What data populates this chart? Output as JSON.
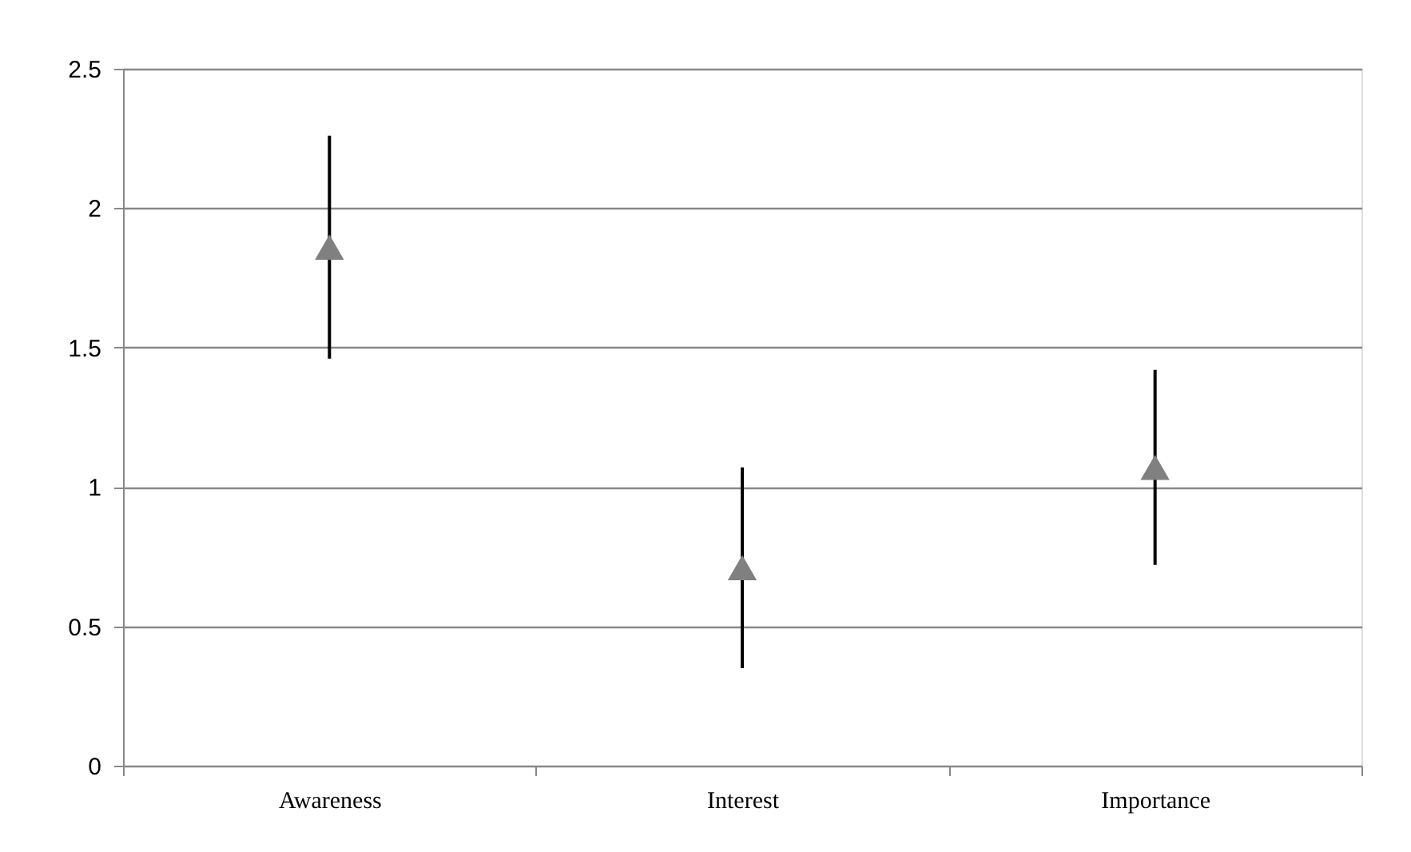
{
  "chart_data": {
    "type": "scatter",
    "categories": [
      "Awareness",
      "Interest",
      "Importance"
    ],
    "series": [
      {
        "color": "#808080",
        "values": [
          1.86,
          0.71,
          1.07
        ],
        "errors": [
          0.4,
          0.36,
          0.35
        ]
      }
    ],
    "marker": "triangle",
    "ylim": [
      0,
      2.5
    ],
    "yticks": [
      0,
      0.5,
      1,
      1.5,
      2,
      2.5
    ],
    "grid": "y",
    "legend": false
  }
}
